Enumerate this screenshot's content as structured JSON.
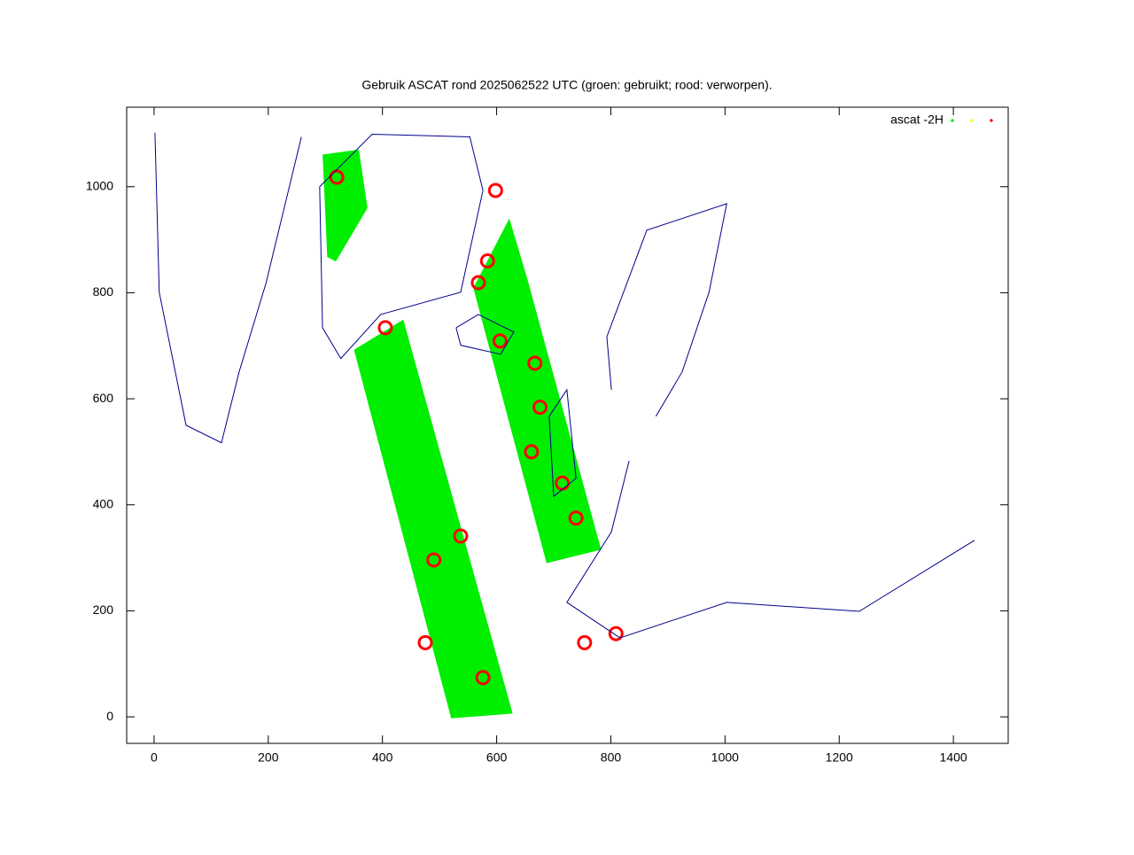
{
  "chart_data": {
    "type": "scatter",
    "title": "Gebruik ASCAT rond 2025062522 UTC (groen: gebruikt; rood: verworpen).",
    "xlim": [
      -48,
      1496
    ],
    "ylim": [
      -50,
      1150
    ],
    "xticks": [
      0,
      200,
      400,
      600,
      800,
      1000,
      1200,
      1400
    ],
    "yticks": [
      0,
      200,
      400,
      600,
      800,
      1000
    ],
    "legend": "top-right",
    "series": [
      {
        "name": "ascat -2H",
        "color": "#00ee00",
        "style": "area",
        "x": [
          351,
          436,
          627,
          521,
          null,
          622,
          653,
          782,
          688,
          560,
          null,
          296,
          358,
          373,
          318,
          304
        ],
        "values": [
          692,
          748,
          7,
          -2,
          null,
          938,
          826,
          316,
          291,
          809,
          null,
          1060,
          1069,
          960,
          860,
          868
        ]
      },
      {
        "color": "#ffff00",
        "style": "points",
        "x": [],
        "values": []
      },
      {
        "color": "#ff0000",
        "style": "points",
        "x": [
          490,
          576,
          754,
          809,
          584,
          667,
          676,
          661,
          715,
          739,
          475,
          320,
          568,
          606,
          405,
          537,
          598
        ],
        "values": [
          296,
          74,
          140,
          157,
          860,
          667,
          584,
          500,
          441,
          375,
          140,
          1018,
          819,
          709,
          734,
          341,
          993
        ]
      },
      {
        "color": "#00008b",
        "style": "line",
        "x": [
          290,
          295,
          327,
          397,
          537,
          576,
          553,
          382,
          290,
          null,
          529,
          568,
          630,
          607,
          537,
          529,
          null,
          801,
          793,
          863,
          1003,
          972,
          925,
          879,
          null,
          832,
          801,
          723,
          816,
          1003,
          1235,
          1437,
          null,
          692,
          723,
          739,
          700,
          692,
          null,
          1.5,
          9,
          56,
          118,
          149,
          196,
          258
        ],
        "values": [
          1000,
          734,
          676,
          759,
          801,
          993,
          1094,
          1099,
          1000,
          null,
          734,
          759,
          726,
          684,
          701,
          734,
          null,
          617,
          717,
          918,
          968,
          801,
          651,
          567,
          null,
          483,
          349,
          216,
          149,
          216,
          199,
          333,
          null,
          567,
          617,
          450,
          416,
          567,
          null,
          1102,
          801,
          550,
          517,
          651,
          818,
          1094
        ]
      }
    ]
  }
}
